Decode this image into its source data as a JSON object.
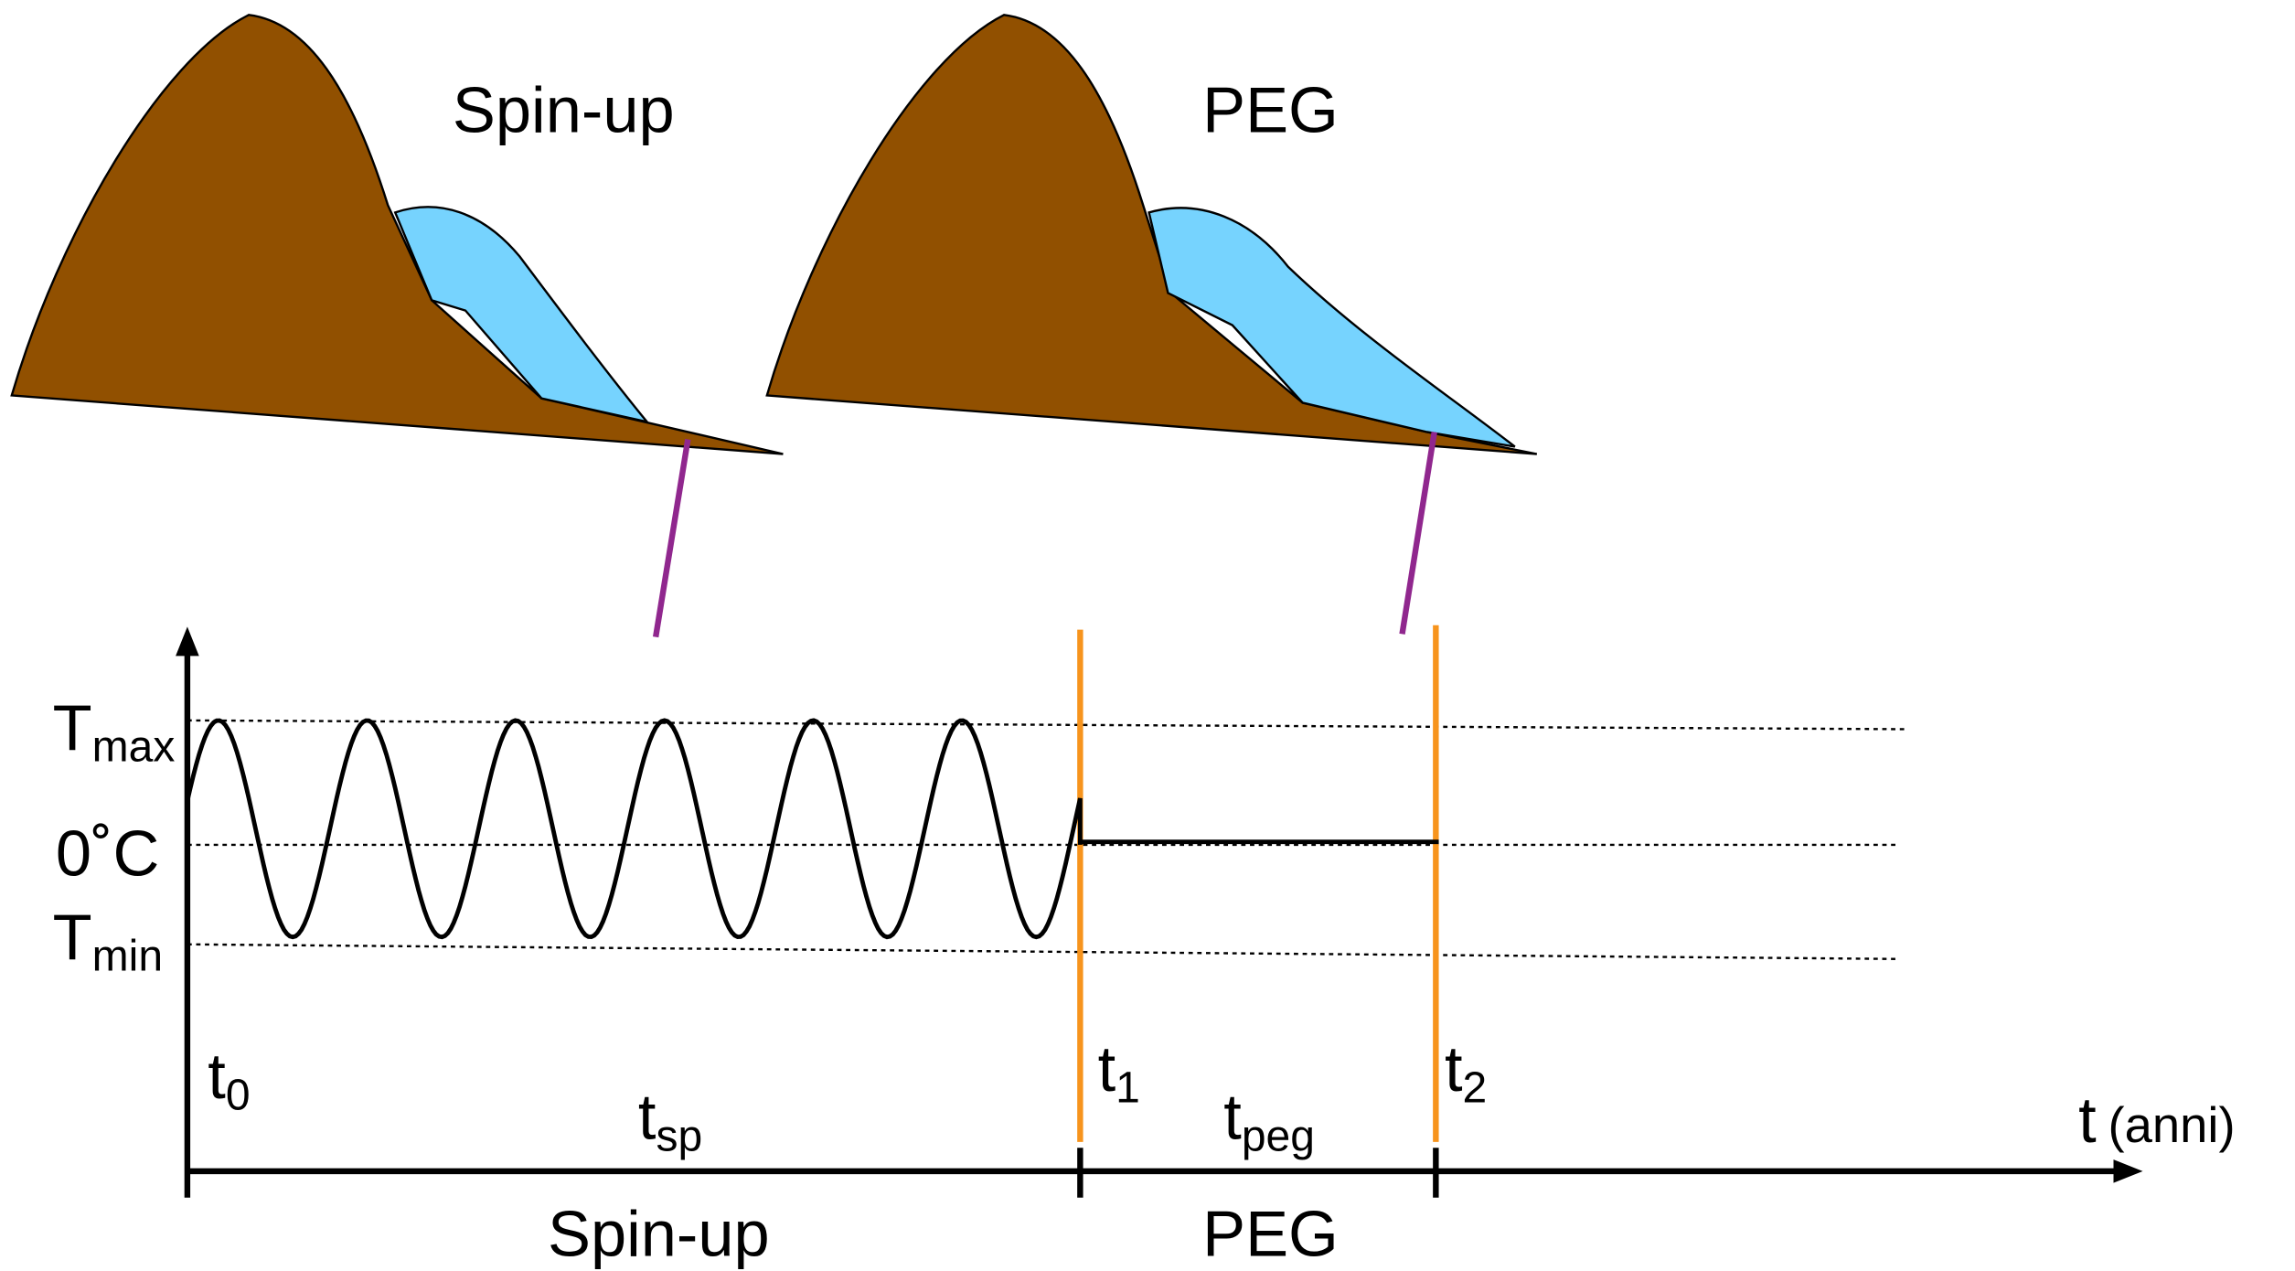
{
  "top_labels": {
    "spinup": "Spin-up",
    "peg": "PEG"
  },
  "y_labels": {
    "tmax": {
      "main": "T",
      "sub": "max"
    },
    "zero": "0˚C",
    "tmin": {
      "main": "T",
      "sub": "min"
    }
  },
  "time_labels": {
    "t0": {
      "main": "t",
      "sub": "0"
    },
    "t1": {
      "main": "t",
      "sub": "1"
    },
    "t2": {
      "main": "t",
      "sub": "2"
    },
    "tsp": {
      "main": "t",
      "sub": "sp"
    },
    "tpeg": {
      "main": "t",
      "sub": "peg"
    }
  },
  "x_axis": {
    "main": "t",
    "unit": "(anni)"
  },
  "bottom_labels": {
    "spinup": "Spin-up",
    "peg": "PEG"
  }
}
